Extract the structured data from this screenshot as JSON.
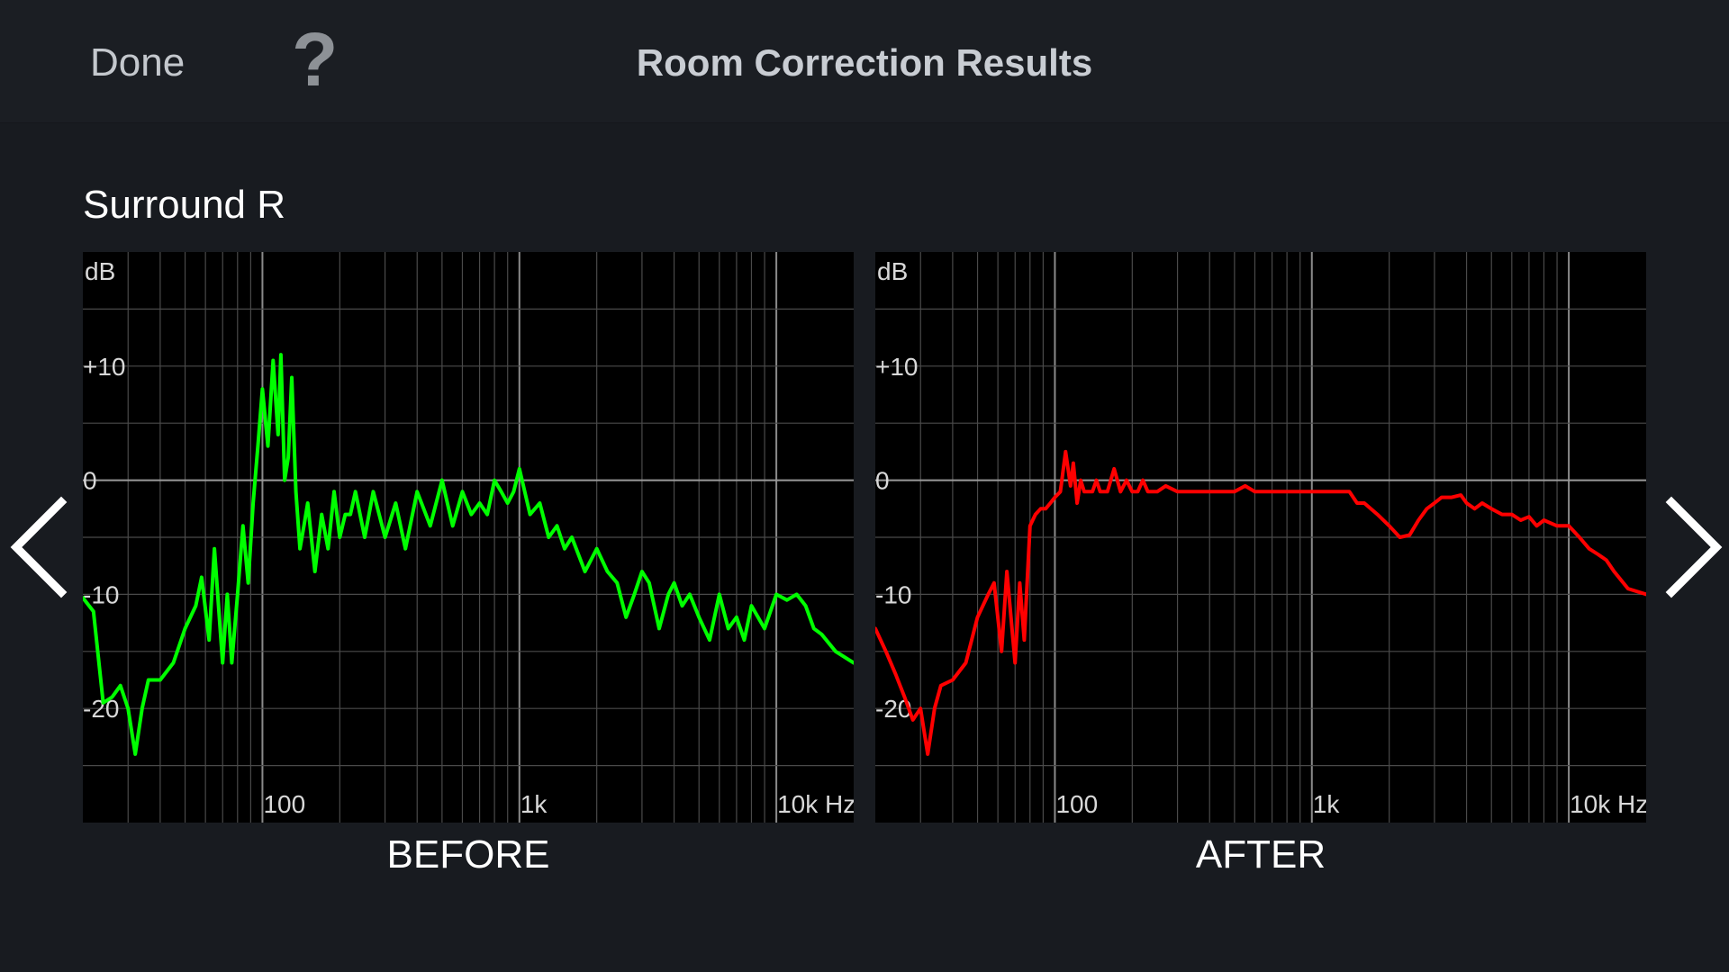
{
  "header": {
    "done_label": "Done",
    "help_label": "?",
    "title": "Room Correction Results"
  },
  "channel": {
    "name": "Surround R"
  },
  "nav": {
    "prev_icon": "chevron-left-icon",
    "next_icon": "chevron-right-icon"
  },
  "colors": {
    "background": "#181b20",
    "before_line": "#00ff00",
    "after_line": "#ff0000",
    "grid": "#5a5a5a"
  },
  "chart_data": [
    {
      "type": "line",
      "name": "before",
      "caption": "BEFORE",
      "color": "#00ff00",
      "ylabel": "dB",
      "x_scale": "log",
      "xlim": [
        20,
        20000
      ],
      "ylim": [
        -30,
        20
      ],
      "grid": true,
      "xticks": [
        100,
        1000,
        10000
      ],
      "xtick_labels": [
        "100",
        "1k",
        "10k Hz"
      ],
      "yticks": [
        10,
        0,
        -10,
        -20
      ],
      "ytick_labels": [
        "+10",
        "0",
        "-10",
        "-20"
      ],
      "x": [
        20,
        22,
        24,
        26,
        28,
        30,
        32,
        34,
        36,
        40,
        45,
        50,
        55,
        58,
        62,
        65,
        70,
        73,
        76,
        80,
        84,
        88,
        92,
        96,
        100,
        105,
        110,
        115,
        118,
        122,
        126,
        130,
        135,
        140,
        145,
        150,
        160,
        170,
        180,
        190,
        200,
        210,
        220,
        230,
        250,
        270,
        300,
        330,
        360,
        400,
        450,
        500,
        550,
        600,
        650,
        700,
        750,
        800,
        850,
        900,
        950,
        1000,
        1100,
        1200,
        1300,
        1400,
        1500,
        1600,
        1800,
        2000,
        2200,
        2400,
        2600,
        2800,
        3000,
        3200,
        3500,
        3800,
        4000,
        4300,
        4600,
        5000,
        5500,
        6000,
        6500,
        7000,
        7500,
        8000,
        9000,
        10000,
        11000,
        12000,
        13000,
        14000,
        15000,
        17000,
        20000
      ],
      "y": [
        -10.3,
        -11.5,
        -19.5,
        -19,
        -18,
        -20,
        -24,
        -20,
        -17.5,
        -17.5,
        -16,
        -13,
        -11,
        -8.5,
        -14,
        -6,
        -16,
        -10,
        -16,
        -10,
        -4,
        -9,
        -2,
        3,
        8,
        3,
        10.5,
        4,
        11,
        0,
        2,
        9,
        -1,
        -6,
        -4,
        -2,
        -8,
        -3,
        -6,
        -1,
        -5,
        -3,
        -3,
        -1,
        -5,
        -1,
        -5,
        -2,
        -6,
        -1,
        -4,
        0,
        -4,
        -1,
        -3,
        -2,
        -3,
        0,
        -1,
        -2,
        -1,
        1,
        -3,
        -2,
        -5,
        -4,
        -6,
        -5,
        -8,
        -6,
        -8,
        -9,
        -12,
        -10,
        -8,
        -9,
        -13,
        -10,
        -9,
        -11,
        -10,
        -12,
        -14,
        -10,
        -13,
        -12,
        -14,
        -11,
        -13,
        -10,
        -10.5,
        -10,
        -11,
        -13,
        -13.5,
        -15,
        -16
      ]
    },
    {
      "type": "line",
      "name": "after",
      "caption": "AFTER",
      "color": "#ff0000",
      "ylabel": "dB",
      "x_scale": "log",
      "xlim": [
        20,
        20000
      ],
      "ylim": [
        -30,
        20
      ],
      "grid": true,
      "xticks": [
        100,
        1000,
        10000
      ],
      "xtick_labels": [
        "100",
        "1k",
        "10k Hz"
      ],
      "yticks": [
        10,
        0,
        -10,
        -20
      ],
      "ytick_labels": [
        "+10",
        "0",
        "-10",
        "-20"
      ],
      "x": [
        20,
        22,
        24,
        26,
        28,
        30,
        32,
        34,
        36,
        40,
        45,
        50,
        55,
        58,
        62,
        65,
        70,
        73,
        76,
        80,
        84,
        88,
        92,
        96,
        100,
        105,
        110,
        115,
        118,
        122,
        126,
        130,
        135,
        140,
        145,
        150,
        160,
        170,
        180,
        190,
        200,
        210,
        220,
        230,
        250,
        270,
        300,
        330,
        360,
        400,
        450,
        500,
        550,
        600,
        650,
        700,
        750,
        800,
        850,
        900,
        950,
        1000,
        1100,
        1200,
        1300,
        1400,
        1500,
        1600,
        1800,
        2000,
        2200,
        2400,
        2600,
        2800,
        3000,
        3200,
        3500,
        3800,
        4000,
        4300,
        4600,
        5000,
        5500,
        6000,
        6500,
        7000,
        7500,
        8000,
        9000,
        10000,
        11000,
        12000,
        13000,
        14000,
        15000,
        17000,
        20000
      ],
      "y": [
        -13,
        -15,
        -17,
        -19,
        -21,
        -20,
        -24,
        -20,
        -18,
        -17.5,
        -16,
        -12,
        -10,
        -9,
        -15,
        -8,
        -16,
        -9,
        -14,
        -4,
        -3,
        -2.5,
        -2.5,
        -2,
        -1.5,
        -1,
        2.5,
        -0.5,
        1.5,
        -2,
        0,
        -1,
        -1,
        -1,
        0,
        -1,
        -1,
        1,
        -1,
        0,
        -1,
        -1,
        0,
        -1,
        -1,
        -0.5,
        -1,
        -1,
        -1,
        -1,
        -1,
        -1,
        -0.5,
        -1,
        -1,
        -1,
        -1,
        -1,
        -1,
        -1,
        -1,
        -1,
        -1,
        -1,
        -1,
        -1,
        -2,
        -2,
        -3,
        -4,
        -5,
        -4.8,
        -3.5,
        -2.5,
        -2,
        -1.5,
        -1.5,
        -1.3,
        -2,
        -2.5,
        -2,
        -2.5,
        -3,
        -3,
        -3.5,
        -3.2,
        -4,
        -3.5,
        -4,
        -4,
        -5,
        -6,
        -6.5,
        -7,
        -8,
        -9.5,
        -10
      ]
    }
  ]
}
